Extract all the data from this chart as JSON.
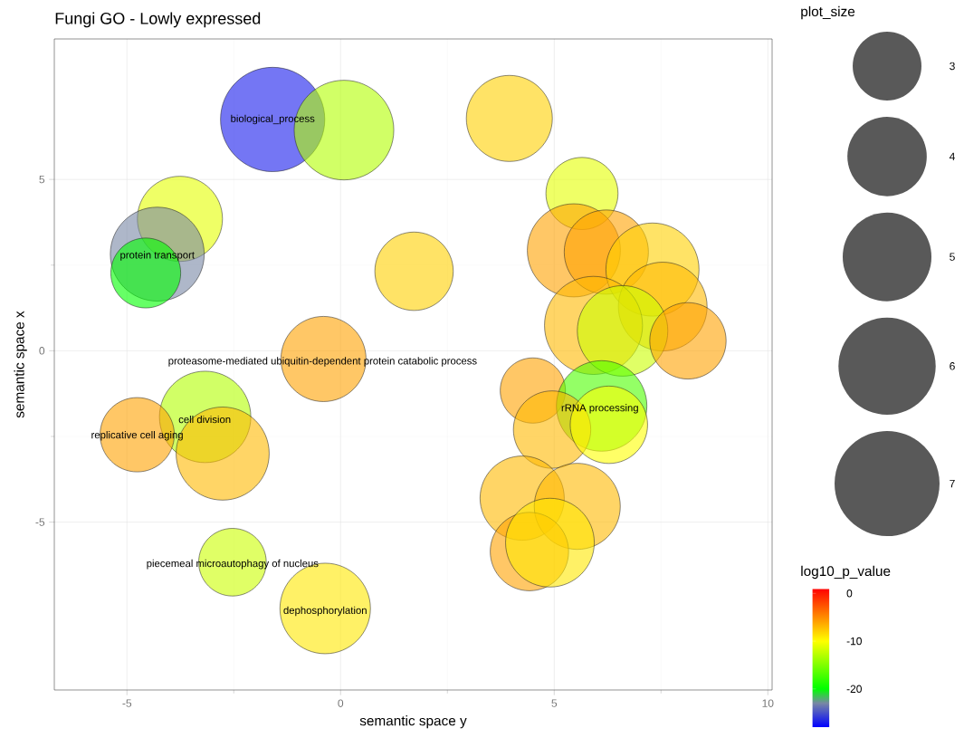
{
  "chart_data": {
    "type": "bubble",
    "title": "Fungi GO - Lowly expressed",
    "xlabel": "semantic space y",
    "ylabel": "semantic space x",
    "legend_title": "plot_size",
    "clabel": "log10_p_value",
    "x": [
      -1.59,
      0.08,
      -3.76,
      -4.29,
      -4.56,
      1.72,
      -0.4,
      3.95,
      5.65,
      5.46,
      6.22,
      7.3,
      7.54,
      5.92,
      6.6,
      8.13,
      4.5,
      6.11,
      4.95,
      6.28,
      4.25,
      5.54,
      4.42,
      4.9,
      -3.17,
      -2.76,
      -4.76,
      -2.53,
      -0.36
    ],
    "values": [
      6.75,
      6.44,
      3.85,
      2.82,
      2.27,
      2.32,
      -0.24,
      6.78,
      4.59,
      2.93,
      2.88,
      2.37,
      1.29,
      0.74,
      0.58,
      0.29,
      -1.16,
      -1.61,
      -2.3,
      -2.16,
      -4.3,
      -4.54,
      -5.86,
      -5.6,
      -1.93,
      -3.0,
      -2.45,
      -6.17,
      -7.52
    ],
    "sizes": [
      6.9,
      6.3,
      4.6,
      5.6,
      3.1,
      3.9,
      4.6,
      4.7,
      3.3,
      5.5,
      4.5,
      5.5,
      5.0,
      6.1,
      5.2,
      3.7,
      2.7,
      5.2,
      3.8,
      3.8,
      4.5,
      4.7,
      3.9,
      5.0,
      5.3,
      5.5,
      3.5,
      2.9,
      5.2
    ],
    "cvalues": [
      -27,
      -13,
      -11,
      -23,
      -20,
      -8,
      -6,
      -8,
      -11,
      -6,
      -6,
      -8,
      -7,
      -7,
      -12,
      -6,
      -6,
      -17,
      -7,
      -10,
      -7,
      -7,
      -6,
      -9,
      -13,
      -7,
      -6,
      -12,
      -9
    ],
    "size_legend": [
      3,
      4,
      5,
      6,
      7
    ],
    "clim": [
      -28,
      1
    ],
    "cticks": [
      0,
      -10,
      -20
    ],
    "xlim": [
      -6.7,
      10.1
    ],
    "ylim": [
      -9.9,
      9.1
    ],
    "xticks": [
      -5,
      0,
      5,
      10
    ],
    "yticks": [
      -5,
      0,
      5
    ],
    "grid": true,
    "annotations": [
      {
        "text": "biological_process",
        "x": -1.59,
        "y": 6.75
      },
      {
        "text": "protein transport",
        "x": -4.29,
        "y": 2.77
      },
      {
        "text": "proteasome-mediated ubiquitin-dependent protein catabolic process",
        "x": -0.42,
        "y": -0.32
      },
      {
        "text": "rRNA processing",
        "x": 6.07,
        "y": -1.69
      },
      {
        "text": "cell division",
        "x": -3.18,
        "y": -2.0
      },
      {
        "text": "replicative cell aging",
        "x": -4.76,
        "y": -2.48
      },
      {
        "text": "piecemeal microautophagy of nucleus",
        "x": -2.53,
        "y": -6.23
      },
      {
        "text": "dephosphorylation",
        "x": -0.36,
        "y": -7.6
      }
    ]
  }
}
